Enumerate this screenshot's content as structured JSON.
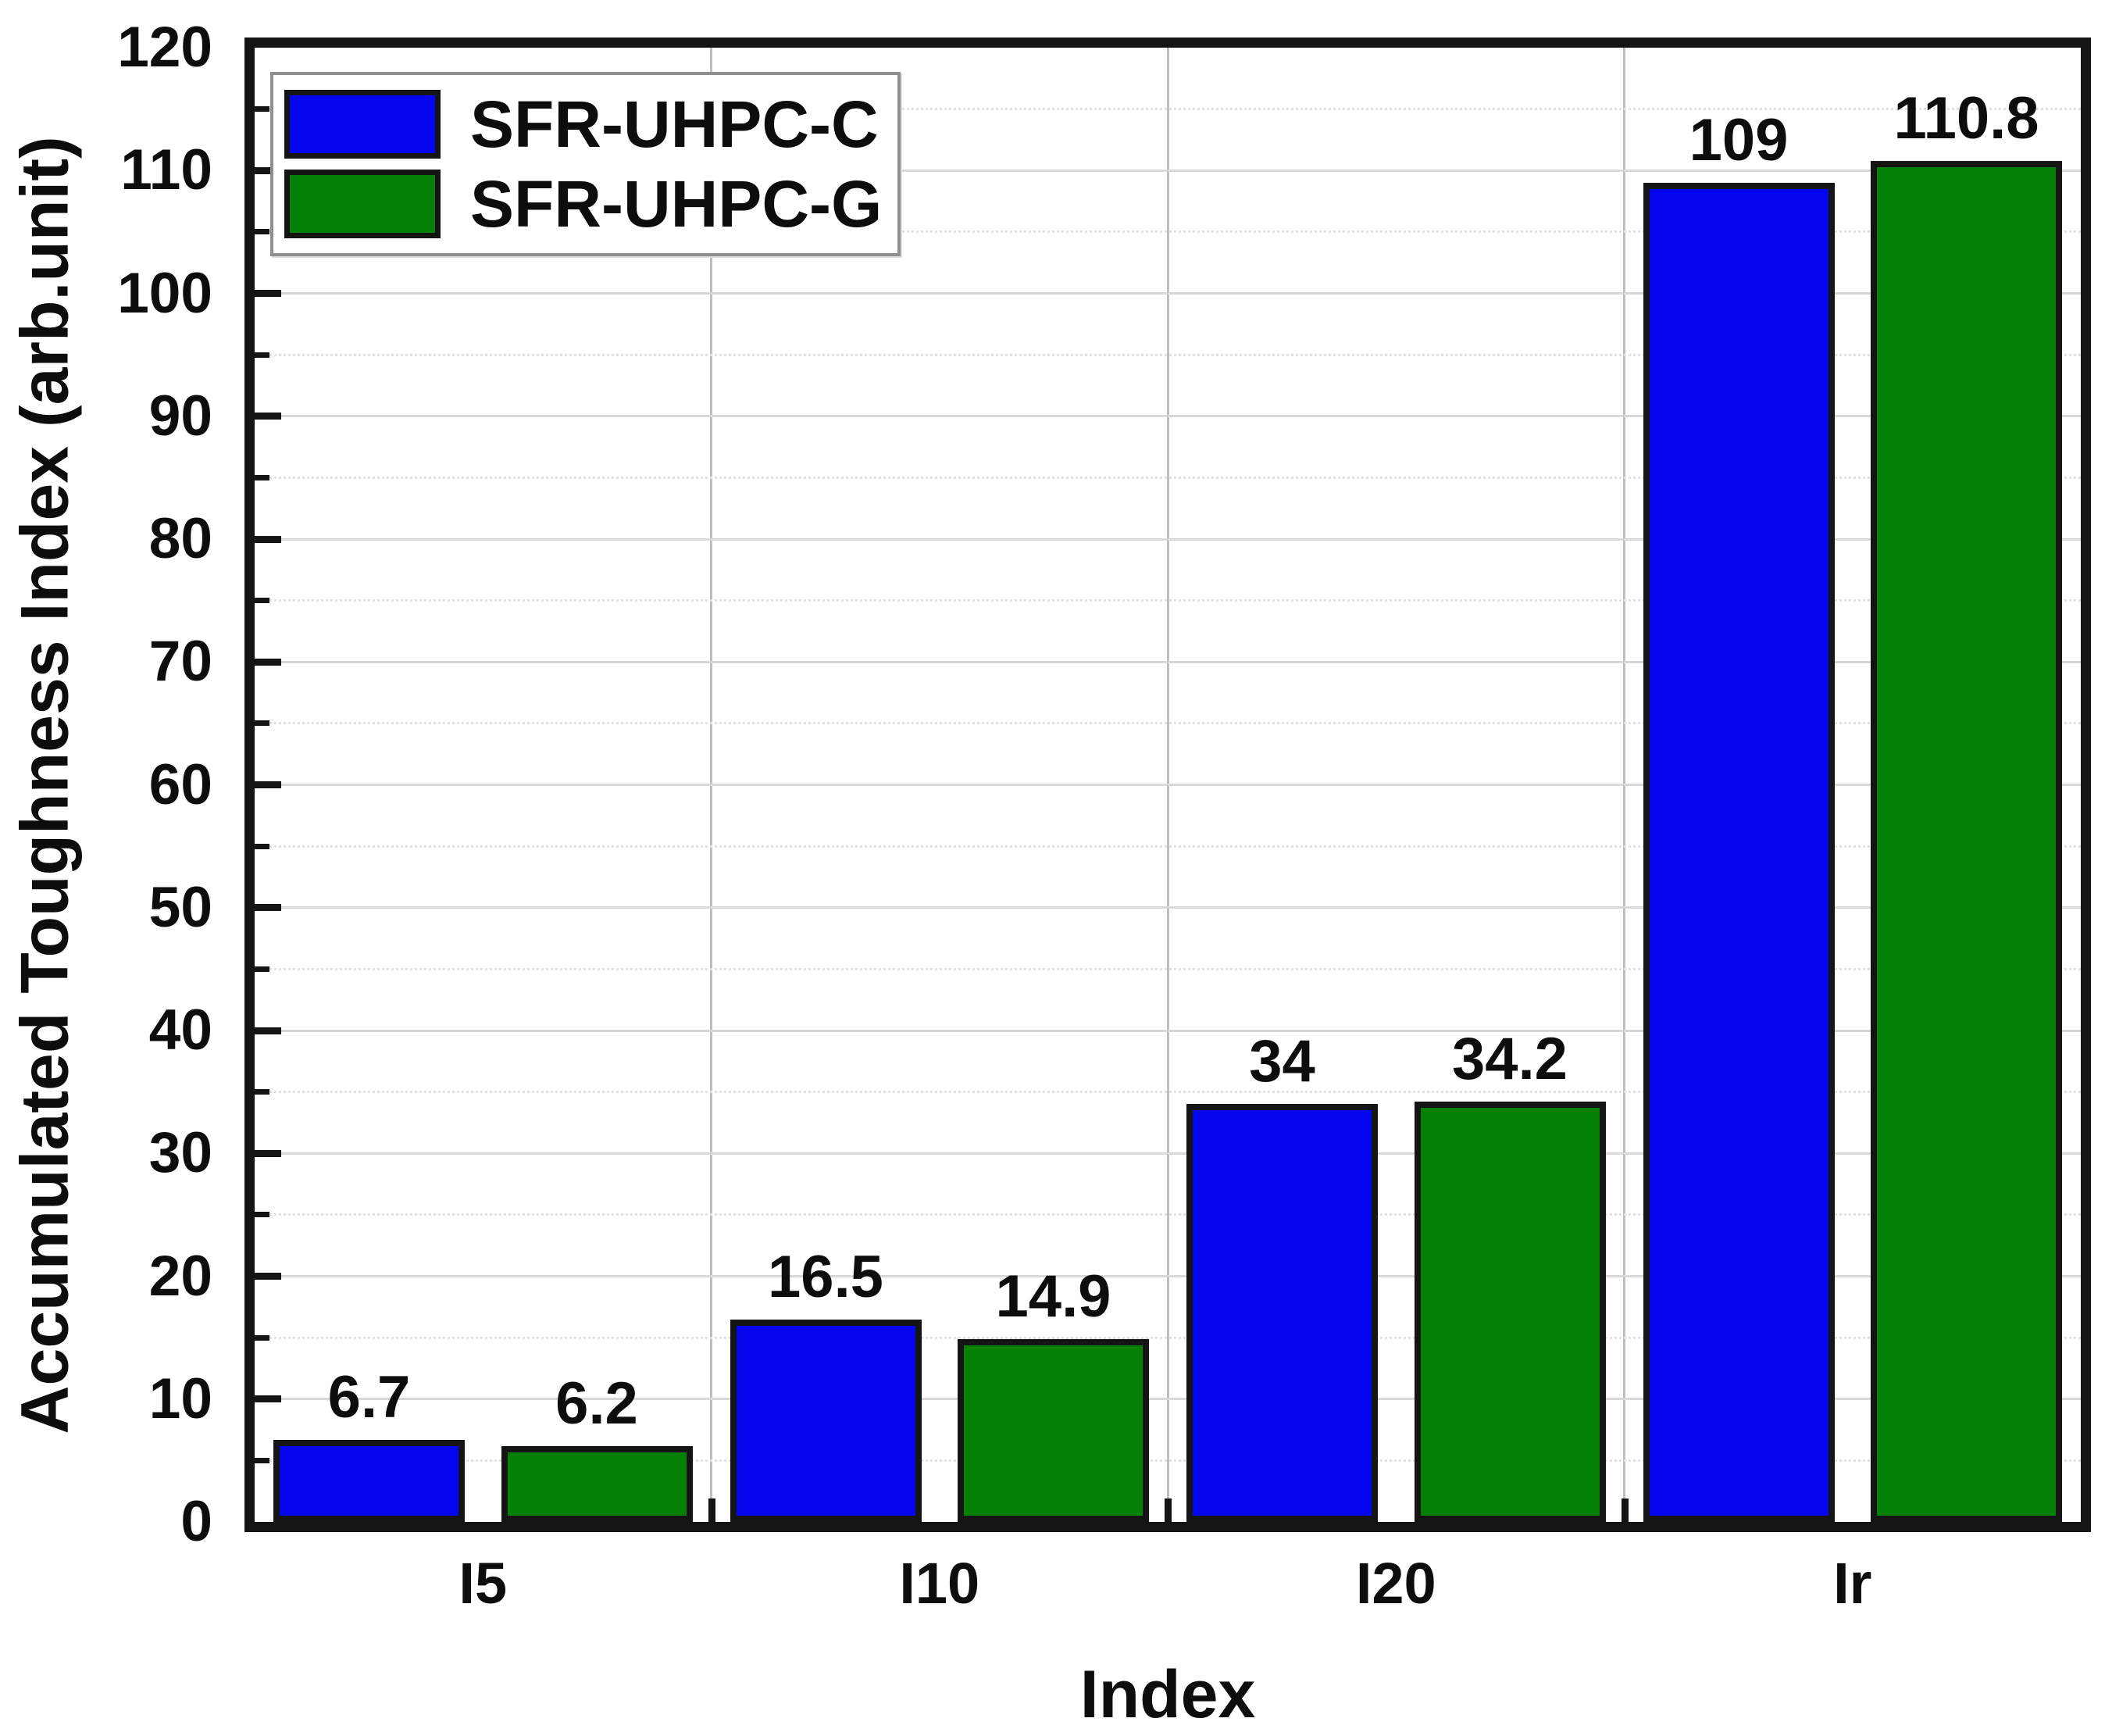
{
  "chart_data": {
    "type": "bar",
    "title": "",
    "xlabel": "Index",
    "ylabel": "Accumulated Toughness Index (arb.unit)",
    "categories": [
      "I5",
      "I10",
      "I20",
      "Ir"
    ],
    "series": [
      {
        "name": "SFR-UHPC-C",
        "color": "#0606ee",
        "values": [
          6.7,
          16.5,
          34,
          109
        ]
      },
      {
        "name": "SFR-UHPC-G",
        "color": "#048004",
        "values": [
          6.2,
          14.9,
          34.2,
          110.8
        ]
      }
    ],
    "value_labels": [
      [
        "6.7",
        "16.5",
        "34",
        "109"
      ],
      [
        "6.2",
        "14.9",
        "34.2",
        "110.8"
      ]
    ],
    "ylim": [
      0,
      120
    ],
    "y_major_step": 10,
    "y_minor_step": 5,
    "y_tick_labels": [
      "0",
      "10",
      "20",
      "30",
      "40",
      "50",
      "60",
      "70",
      "80",
      "90",
      "100",
      "110",
      "120"
    ],
    "grid": {
      "horizontal_major": "solid",
      "horizontal_minor": "dotted",
      "vertical_group_separators": true
    },
    "legend": {
      "position": "top-left",
      "entries": [
        "SFR-UHPC-C",
        "SFR-UHPC-G"
      ]
    }
  },
  "style_colors": {
    "bar_blue": "#0606ee",
    "bar_green": "#048004",
    "axis_black": "#141414",
    "grid_major": "#d8d8d8",
    "grid_minor": "#e2e2e2",
    "grid_vertical": "#bfbfbf",
    "legend_border": "#8f8f8f",
    "text": "#0d0d0d",
    "background": "#ffffff"
  }
}
